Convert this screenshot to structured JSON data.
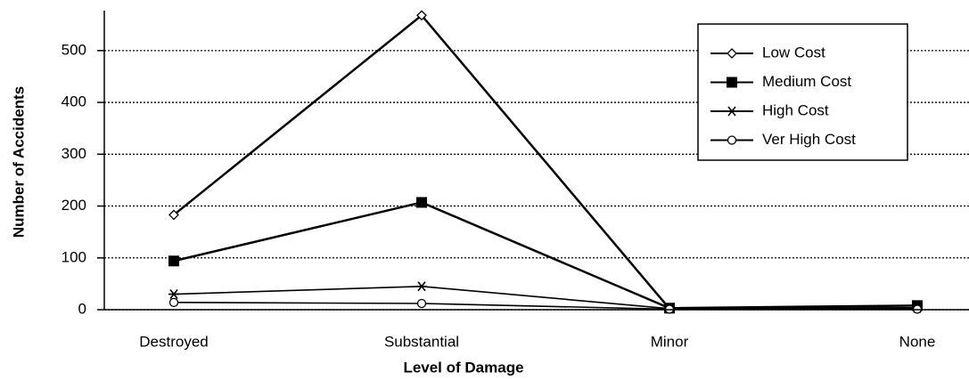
{
  "chart_data": {
    "type": "line",
    "x_label": "Level of Damage",
    "y_label": "Number of Accidents",
    "categories": [
      "Destroyed",
      "Substantial",
      "Minor",
      "None"
    ],
    "series": [
      {
        "name": "Low Cost",
        "color": "#000000",
        "marker": "diamond",
        "values": [
          183,
          568,
          2,
          3
        ]
      },
      {
        "name": "Medium Cost",
        "color": "#000000",
        "marker": "square",
        "values": [
          94,
          207,
          3,
          8
        ]
      },
      {
        "name": "High Cost",
        "color": "#000000",
        "marker": "asterisk",
        "values": [
          30,
          45,
          2,
          3
        ]
      },
      {
        "name": "Ver High Cost",
        "color": "#000000",
        "marker": "circle",
        "values": [
          14,
          12,
          1,
          1
        ]
      }
    ],
    "ylim": [
      0,
      577
    ],
    "yticks": [
      0,
      100,
      200,
      300,
      400,
      500
    ],
    "grid": true,
    "legend": "upper right"
  }
}
